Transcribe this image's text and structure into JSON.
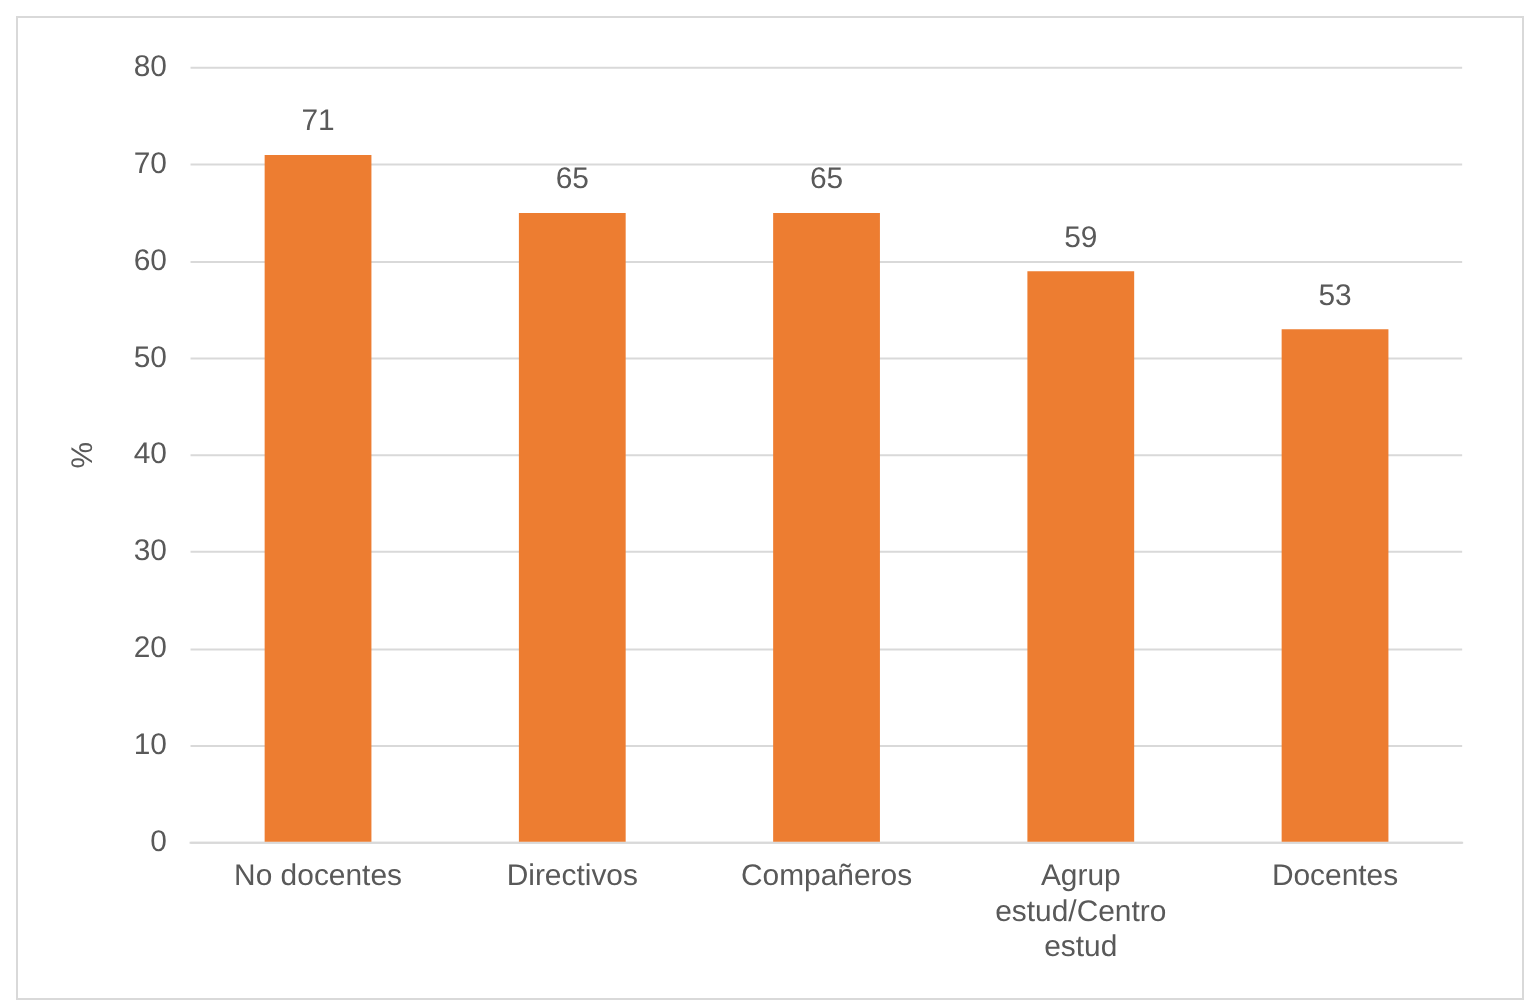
{
  "chart_data": {
    "type": "bar",
    "categories": [
      "No docentes",
      "Directivos",
      "Compañeros",
      "Agrup estud/Centro estud",
      "Docentes"
    ],
    "values": [
      71,
      65,
      65,
      59,
      53
    ],
    "color": "#ed7d31",
    "ylabel": "%",
    "ylim": [
      0,
      80
    ],
    "yticks": [
      0,
      10,
      20,
      30,
      40,
      50,
      60,
      70,
      80
    ],
    "grid": "y",
    "legend": false,
    "data_labels": true
  }
}
